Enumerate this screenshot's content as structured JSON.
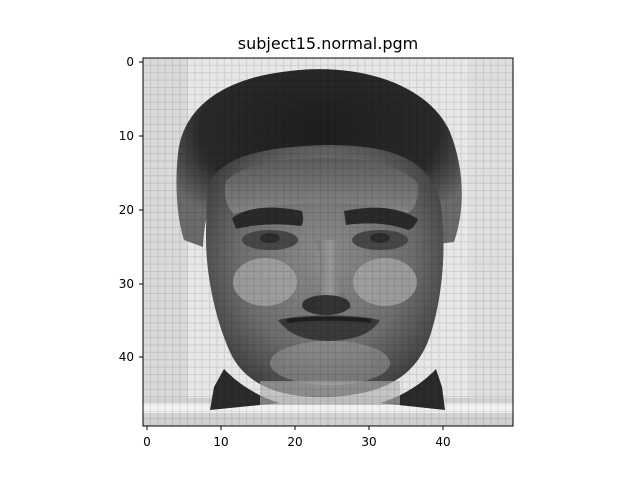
{
  "figure": {
    "title": "subject15.normal.pgm"
  },
  "image": {
    "colormap": "gray",
    "rows": 50,
    "cols": 50,
    "content": "grayscale face image"
  },
  "axes": {
    "x_ticks": [
      "0",
      "10",
      "20",
      "30",
      "40"
    ],
    "y_ticks": [
      "0",
      "10",
      "20",
      "30",
      "40"
    ]
  }
}
